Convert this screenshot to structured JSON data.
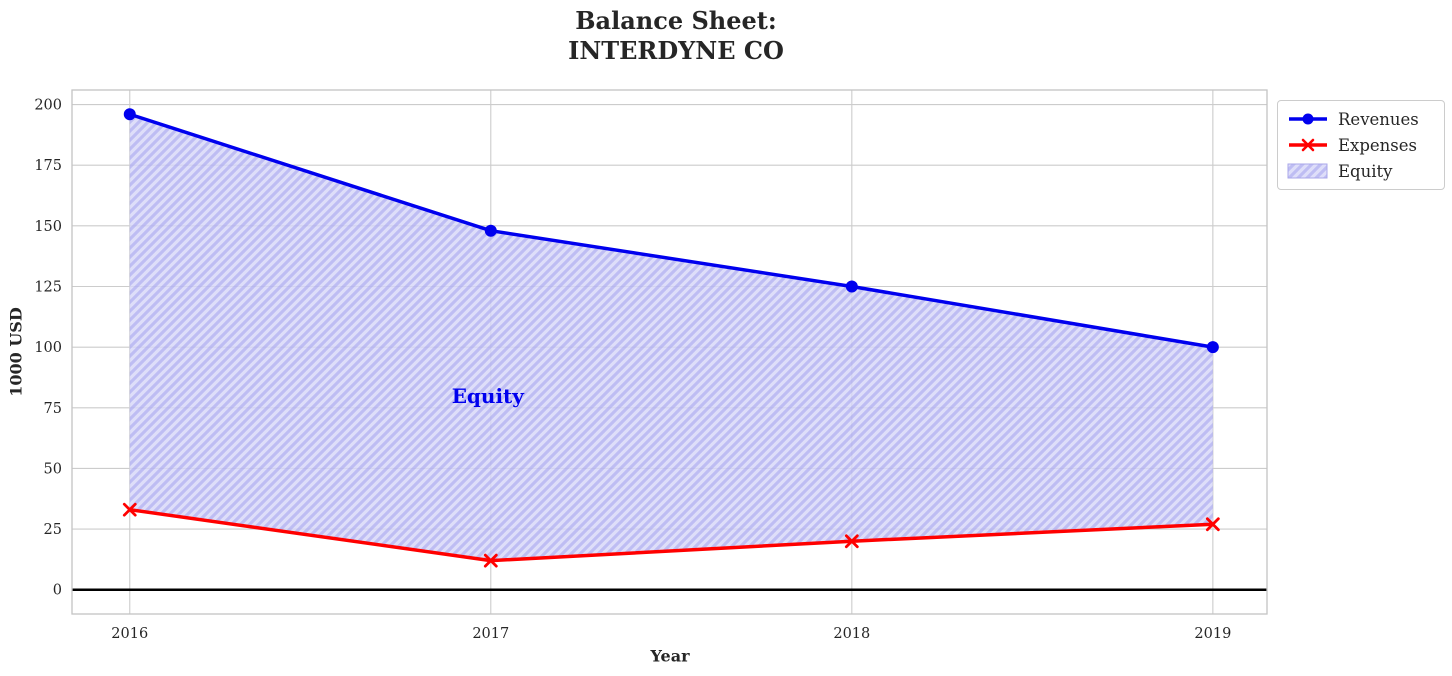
{
  "chart_data": {
    "type": "line",
    "title": "Balance Sheet:\nINTERDYNE CO",
    "title_lines": [
      "Balance Sheet:",
      "INTERDYNE CO"
    ],
    "xlabel": "Year",
    "ylabel": "1000 USD",
    "x": [
      2016,
      2017,
      2018,
      2019
    ],
    "series": [
      {
        "name": "Revenues",
        "values": [
          196,
          148,
          125,
          100
        ],
        "color": "#0000ee",
        "marker": "circle",
        "line_width": 3.5
      },
      {
        "name": "Expenses",
        "values": [
          33,
          12,
          20,
          27
        ],
        "color": "#ff0000",
        "marker": "x",
        "line_width": 3.5
      }
    ],
    "fill_between": {
      "name": "Equity",
      "between": [
        "Revenues",
        "Expenses"
      ],
      "fill_color": "rgba(214,214,248,0.8)",
      "hatch_color": "rgba(150,148,235,0.45)",
      "hatch": "/"
    },
    "annotation": {
      "text": "Equity",
      "x": 2016.9,
      "y": 80,
      "color": "#0000ee"
    },
    "xlim": [
      2015.84,
      2019.15
    ],
    "ylim": [
      -10,
      206
    ],
    "xticks": [
      2016,
      2017,
      2018,
      2019
    ],
    "yticks": [
      0,
      25,
      50,
      75,
      100,
      125,
      150,
      175,
      200
    ],
    "grid": true,
    "grid_color": "#cccccc",
    "frame_color": "#c4c4c4",
    "zero_line": {
      "y": 0,
      "color": "#000000",
      "width": 2.5
    },
    "text_color": "#262626",
    "legend": {
      "position": "outside-upper-right",
      "entries": [
        {
          "label": "Revenues",
          "kind": "line-circle"
        },
        {
          "label": "Expenses",
          "kind": "line-x"
        },
        {
          "label": "Equity",
          "kind": "hatched-patch"
        }
      ]
    }
  }
}
